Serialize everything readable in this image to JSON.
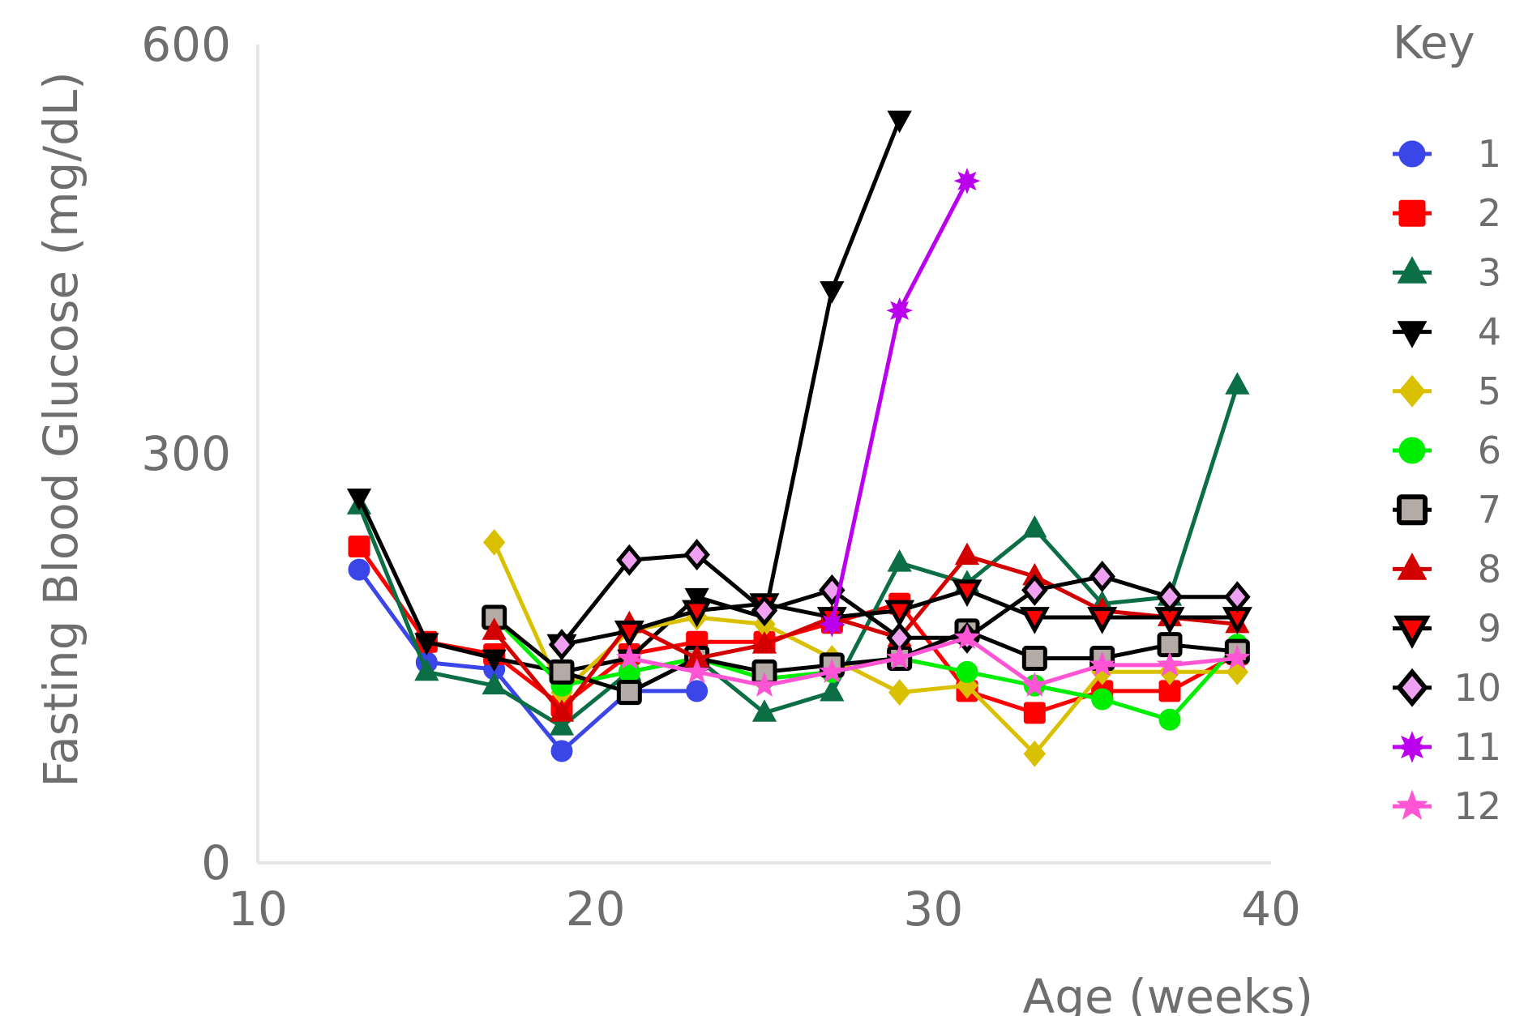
{
  "chart_data": {
    "type": "line",
    "title": "",
    "xlabel": "Age (weeks)",
    "ylabel": "Fasting Blood Glucose (mg/dL)",
    "xlim": [
      10,
      40
    ],
    "ylim": [
      0,
      600
    ],
    "xticks": [
      "10",
      "20",
      "30",
      "40"
    ],
    "yticks": [
      "0",
      "300",
      "600"
    ],
    "grid": false,
    "legend": {
      "title": "Key",
      "placement": "right"
    },
    "series": [
      {
        "name": "1",
        "color": "#3b46e8",
        "marker": "circle",
        "x": [
          13,
          15,
          17,
          19,
          21,
          23
        ],
        "y": [
          215,
          147,
          142,
          82,
          126,
          126
        ]
      },
      {
        "name": "2",
        "color": "#ff0000",
        "marker": "square",
        "x": [
          13,
          15,
          17,
          19,
          21,
          23,
          25,
          27,
          29,
          31,
          33,
          35,
          37,
          39
        ],
        "y": [
          232,
          162,
          153,
          115,
          153,
          162,
          162,
          176,
          190,
          126,
          110,
          126,
          126,
          153
        ]
      },
      {
        "name": "3",
        "color": "#0b6e45",
        "marker": "triangle-up",
        "x": [
          13,
          15,
          17,
          19,
          21,
          23,
          25,
          27,
          29,
          31,
          33,
          35,
          37,
          39
        ],
        "y": [
          262,
          140,
          130,
          100,
          140,
          150,
          110,
          125,
          220,
          205,
          245,
          190,
          195,
          350
        ]
      },
      {
        "name": "4",
        "color": "#000000",
        "marker": "triangle-down",
        "x": [
          13,
          15,
          17,
          19,
          21,
          23,
          25,
          27,
          29
        ],
        "y": [
          268,
          162,
          150,
          140,
          150,
          195,
          180,
          420,
          545
        ]
      },
      {
        "name": "5",
        "color": "#d9c000",
        "marker": "diamond",
        "x": [
          17,
          19,
          21,
          23,
          25,
          27,
          29,
          31,
          33,
          35,
          37,
          39
        ],
        "y": [
          235,
          125,
          170,
          180,
          175,
          150,
          125,
          130,
          80,
          140,
          140,
          140
        ]
      },
      {
        "name": "6",
        "color": "#00ee00",
        "marker": "circle",
        "x": [
          17,
          19,
          21,
          23,
          25,
          27,
          29,
          31,
          33,
          35,
          37,
          39
        ],
        "y": [
          180,
          130,
          140,
          150,
          135,
          140,
          150,
          140,
          130,
          120,
          105,
          160
        ]
      },
      {
        "name": "7",
        "color": "#000000",
        "fill": "#b5aba6",
        "marker": "square",
        "x": [
          17,
          19,
          21,
          23,
          25,
          27,
          29,
          31,
          33,
          35,
          37,
          39
        ],
        "y": [
          180,
          140,
          125,
          150,
          140,
          145,
          150,
          170,
          150,
          150,
          160,
          155
        ]
      },
      {
        "name": "8",
        "color": "#d30000",
        "marker": "triangle-up",
        "x": [
          17,
          19,
          21,
          23,
          25,
          27,
          29,
          31,
          33,
          35,
          37,
          39
        ],
        "y": [
          170,
          110,
          175,
          150,
          160,
          180,
          165,
          225,
          210,
          185,
          180,
          175
        ]
      },
      {
        "name": "9",
        "color": "#000000",
        "fill": "#ff0000",
        "marker": "triangle-down",
        "x": [
          19,
          21,
          23,
          25,
          27,
          29,
          31,
          33,
          35,
          37,
          39
        ],
        "y": [
          160,
          170,
          185,
          190,
          180,
          185,
          200,
          180,
          180,
          180,
          180
        ]
      },
      {
        "name": "10",
        "color": "#000000",
        "fill": "#f0a0f0",
        "marker": "diamond",
        "x": [
          19,
          21,
          23,
          25,
          27,
          29,
          31,
          33,
          35,
          37,
          39
        ],
        "y": [
          160,
          222,
          226,
          185,
          200,
          165,
          165,
          200,
          210,
          195,
          195
        ]
      },
      {
        "name": "11",
        "color": "#bb00ee",
        "marker": "asterisk",
        "x": [
          27,
          29,
          31
        ],
        "y": [
          175,
          405,
          500
        ]
      },
      {
        "name": "12",
        "color": "#ff55d5",
        "marker": "star",
        "x": [
          21,
          23,
          25,
          27,
          29,
          31,
          33,
          35,
          37,
          39
        ],
        "y": [
          150,
          140,
          130,
          140,
          150,
          165,
          130,
          145,
          145,
          150
        ]
      }
    ]
  }
}
